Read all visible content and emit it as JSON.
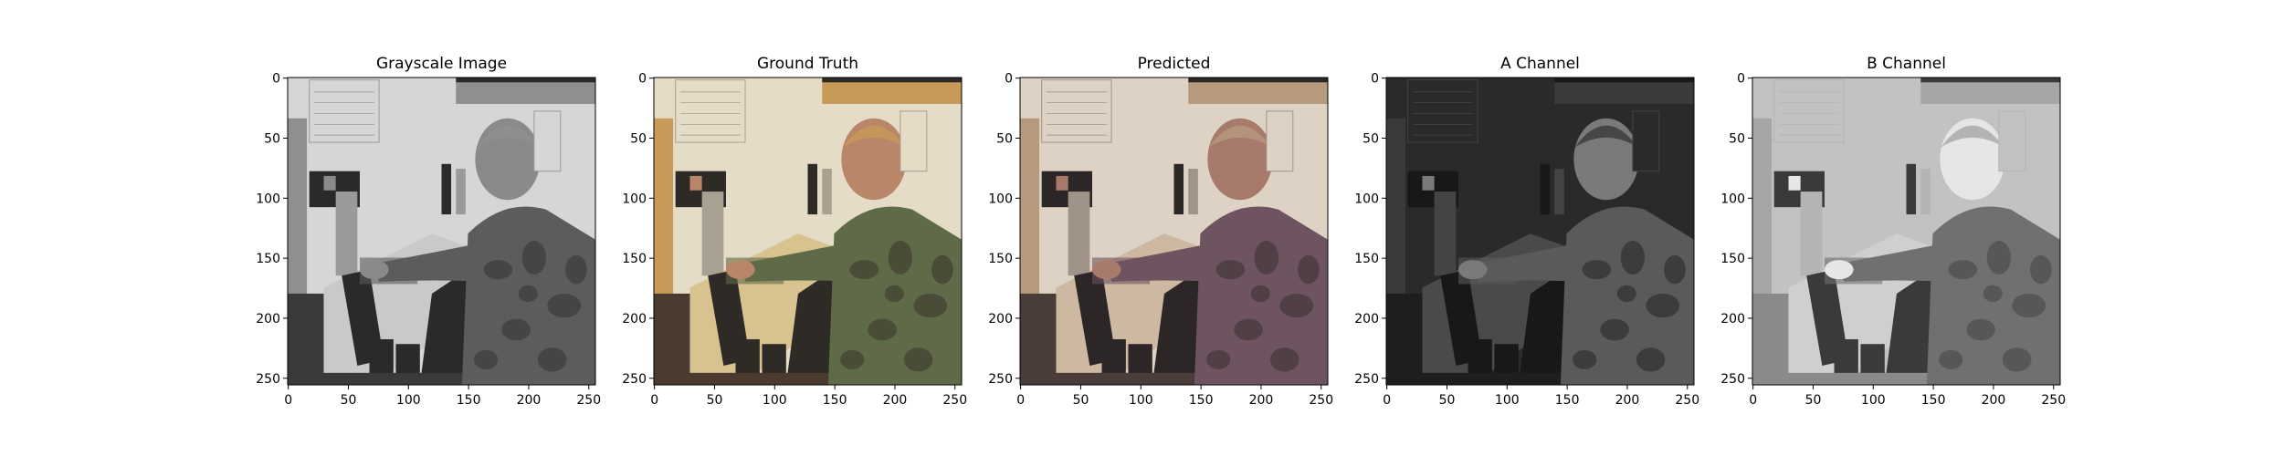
{
  "chart_data": [
    {
      "type": "image",
      "title": "Grayscale Image",
      "image_desc": "grayscale",
      "xlim": [
        0,
        255
      ],
      "ylim": [
        255,
        0
      ],
      "xticks": [
        0,
        50,
        100,
        150,
        200,
        250
      ],
      "yticks": [
        0,
        50,
        100,
        150,
        200,
        250
      ]
    },
    {
      "type": "image",
      "title": "Ground Truth",
      "image_desc": "full color",
      "xlim": [
        0,
        255
      ],
      "ylim": [
        255,
        0
      ],
      "xticks": [
        0,
        50,
        100,
        150,
        200,
        250
      ],
      "yticks": [
        0,
        50,
        100,
        150,
        200,
        250
      ]
    },
    {
      "type": "image",
      "title": "Predicted",
      "image_desc": "predicted color",
      "xlim": [
        0,
        255
      ],
      "ylim": [
        255,
        0
      ],
      "xticks": [
        0,
        50,
        100,
        150,
        200,
        250
      ],
      "yticks": [
        0,
        50,
        100,
        150,
        200,
        250
      ]
    },
    {
      "type": "image",
      "title": "A Channel",
      "image_desc": "dark channel map",
      "xlim": [
        0,
        255
      ],
      "ylim": [
        255,
        0
      ],
      "xticks": [
        0,
        50,
        100,
        150,
        200,
        250
      ],
      "yticks": [
        0,
        50,
        100,
        150,
        200,
        250
      ]
    },
    {
      "type": "image",
      "title": "B Channel",
      "image_desc": "light channel map",
      "xlim": [
        0,
        255
      ],
      "ylim": [
        255,
        0
      ],
      "xticks": [
        0,
        50,
        100,
        150,
        200,
        250
      ],
      "yticks": [
        0,
        50,
        100,
        150,
        200,
        250
      ]
    }
  ],
  "palette": {
    "gray": {
      "wall": "#d6d6d6",
      "shelf": "#8f8f8f",
      "desk": "#c9c9c9",
      "floor": "#3a3a3a",
      "skin": "#8a8a8a",
      "uniform": "#5c5c5c",
      "dark": "#2a2a2a",
      "screen": "#9a9a9a"
    },
    "truth": {
      "wall": "#e4dcc6",
      "shelf": "#c89a58",
      "desk": "#d8c290",
      "floor": "#4a3a30",
      "skin": "#b9866a",
      "uniform": "#5f6a48",
      "dark": "#2e2a26",
      "screen": "#a8a090"
    },
    "pred": {
      "wall": "#ddd2c4",
      "shelf": "#b59a7e",
      "desk": "#cdb8a2",
      "floor": "#4a3c38",
      "skin": "#a87a6c",
      "uniform": "#6e5460",
      "dark": "#2c2626",
      "screen": "#a09488"
    },
    "achan": {
      "wall": "#2a2a2a",
      "shelf": "#3a3a3a",
      "desk": "#4a4a4a",
      "floor": "#1e1e1e",
      "skin": "#7a7a7a",
      "uniform": "#5a5a5a",
      "dark": "#181818",
      "screen": "#444444"
    },
    "bchan": {
      "wall": "#c2c2c2",
      "shelf": "#a6a6a6",
      "desk": "#cfcfcf",
      "floor": "#8a8a8a",
      "skin": "#e6e6e6",
      "uniform": "#707070",
      "dark": "#3a3a3a",
      "screen": "#b4b4b4"
    }
  }
}
